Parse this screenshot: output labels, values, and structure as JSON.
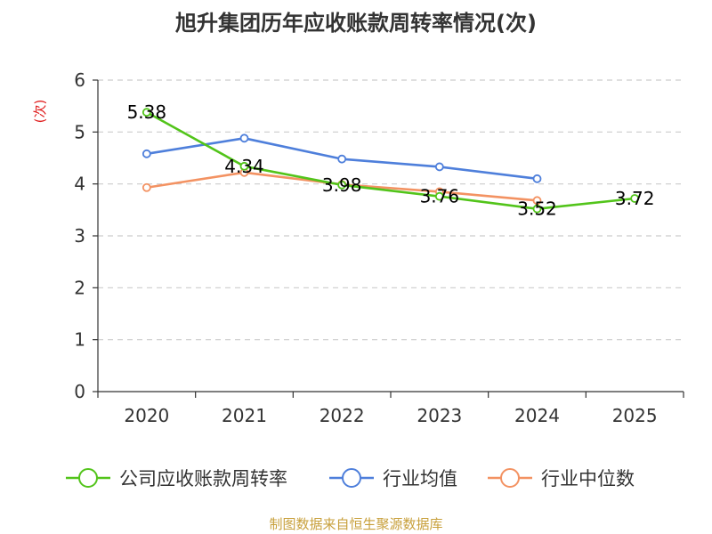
{
  "chart_data": {
    "type": "line",
    "title": "旭升集团历年应收账款周转率情况(次)",
    "ylabel": "(次)",
    "xlabel": "",
    "categories": [
      "2020",
      "2021",
      "2022",
      "2023",
      "2024",
      "2025"
    ],
    "ylim": [
      0,
      6
    ],
    "yticks": [
      0,
      1,
      2,
      3,
      4,
      5,
      6
    ],
    "grid": true,
    "legend_position": "bottom",
    "series": [
      {
        "name": "公司应收账款周转率",
        "color": "#52c41a",
        "values": [
          5.38,
          4.34,
          3.98,
          3.76,
          3.52,
          3.72
        ],
        "labels": [
          "5.38",
          "4.34",
          "3.98",
          "3.76",
          "3.52",
          "3.72"
        ]
      },
      {
        "name": "行业均值",
        "color": "#4e7fdb",
        "values": [
          4.58,
          4.88,
          4.48,
          4.33,
          4.1,
          null
        ]
      },
      {
        "name": "行业中位数",
        "color": "#f39262",
        "values": [
          3.93,
          4.22,
          3.99,
          3.85,
          3.68,
          null
        ]
      }
    ]
  },
  "footer": {
    "source": "制图数据来自恒生聚源数据库"
  }
}
